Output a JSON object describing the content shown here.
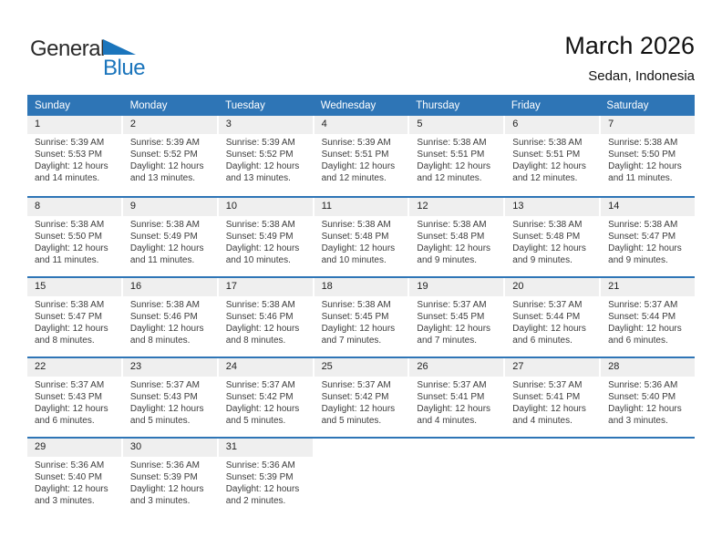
{
  "logo": {
    "general": "General",
    "blue": "Blue"
  },
  "header": {
    "title": "March 2026",
    "location": "Sedan, Indonesia"
  },
  "colors": {
    "header_bar_blue": "#2e75b6",
    "week_separator_blue": "#2e75b6",
    "date_band_gray": "#efefef",
    "logo_blue": "#1b75bc",
    "detail_text": "#3c3c3c"
  },
  "calendar": {
    "day_headers": [
      "Sunday",
      "Monday",
      "Tuesday",
      "Wednesday",
      "Thursday",
      "Friday",
      "Saturday"
    ],
    "weeks": [
      [
        {
          "day": "1",
          "sunrise": "Sunrise: 5:39 AM",
          "sunset": "Sunset: 5:53 PM",
          "daylight": "Daylight: 12 hours and 14 minutes."
        },
        {
          "day": "2",
          "sunrise": "Sunrise: 5:39 AM",
          "sunset": "Sunset: 5:52 PM",
          "daylight": "Daylight: 12 hours and 13 minutes."
        },
        {
          "day": "3",
          "sunrise": "Sunrise: 5:39 AM",
          "sunset": "Sunset: 5:52 PM",
          "daylight": "Daylight: 12 hours and 13 minutes."
        },
        {
          "day": "4",
          "sunrise": "Sunrise: 5:39 AM",
          "sunset": "Sunset: 5:51 PM",
          "daylight": "Daylight: 12 hours and 12 minutes."
        },
        {
          "day": "5",
          "sunrise": "Sunrise: 5:38 AM",
          "sunset": "Sunset: 5:51 PM",
          "daylight": "Daylight: 12 hours and 12 minutes."
        },
        {
          "day": "6",
          "sunrise": "Sunrise: 5:38 AM",
          "sunset": "Sunset: 5:51 PM",
          "daylight": "Daylight: 12 hours and 12 minutes."
        },
        {
          "day": "7",
          "sunrise": "Sunrise: 5:38 AM",
          "sunset": "Sunset: 5:50 PM",
          "daylight": "Daylight: 12 hours and 11 minutes."
        }
      ],
      [
        {
          "day": "8",
          "sunrise": "Sunrise: 5:38 AM",
          "sunset": "Sunset: 5:50 PM",
          "daylight": "Daylight: 12 hours and 11 minutes."
        },
        {
          "day": "9",
          "sunrise": "Sunrise: 5:38 AM",
          "sunset": "Sunset: 5:49 PM",
          "daylight": "Daylight: 12 hours and 11 minutes."
        },
        {
          "day": "10",
          "sunrise": "Sunrise: 5:38 AM",
          "sunset": "Sunset: 5:49 PM",
          "daylight": "Daylight: 12 hours and 10 minutes."
        },
        {
          "day": "11",
          "sunrise": "Sunrise: 5:38 AM",
          "sunset": "Sunset: 5:48 PM",
          "daylight": "Daylight: 12 hours and 10 minutes."
        },
        {
          "day": "12",
          "sunrise": "Sunrise: 5:38 AM",
          "sunset": "Sunset: 5:48 PM",
          "daylight": "Daylight: 12 hours and 9 minutes."
        },
        {
          "day": "13",
          "sunrise": "Sunrise: 5:38 AM",
          "sunset": "Sunset: 5:48 PM",
          "daylight": "Daylight: 12 hours and 9 minutes."
        },
        {
          "day": "14",
          "sunrise": "Sunrise: 5:38 AM",
          "sunset": "Sunset: 5:47 PM",
          "daylight": "Daylight: 12 hours and 9 minutes."
        }
      ],
      [
        {
          "day": "15",
          "sunrise": "Sunrise: 5:38 AM",
          "sunset": "Sunset: 5:47 PM",
          "daylight": "Daylight: 12 hours and 8 minutes."
        },
        {
          "day": "16",
          "sunrise": "Sunrise: 5:38 AM",
          "sunset": "Sunset: 5:46 PM",
          "daylight": "Daylight: 12 hours and 8 minutes."
        },
        {
          "day": "17",
          "sunrise": "Sunrise: 5:38 AM",
          "sunset": "Sunset: 5:46 PM",
          "daylight": "Daylight: 12 hours and 8 minutes."
        },
        {
          "day": "18",
          "sunrise": "Sunrise: 5:38 AM",
          "sunset": "Sunset: 5:45 PM",
          "daylight": "Daylight: 12 hours and 7 minutes."
        },
        {
          "day": "19",
          "sunrise": "Sunrise: 5:37 AM",
          "sunset": "Sunset: 5:45 PM",
          "daylight": "Daylight: 12 hours and 7 minutes."
        },
        {
          "day": "20",
          "sunrise": "Sunrise: 5:37 AM",
          "sunset": "Sunset: 5:44 PM",
          "daylight": "Daylight: 12 hours and 6 minutes."
        },
        {
          "day": "21",
          "sunrise": "Sunrise: 5:37 AM",
          "sunset": "Sunset: 5:44 PM",
          "daylight": "Daylight: 12 hours and 6 minutes."
        }
      ],
      [
        {
          "day": "22",
          "sunrise": "Sunrise: 5:37 AM",
          "sunset": "Sunset: 5:43 PM",
          "daylight": "Daylight: 12 hours and 6 minutes."
        },
        {
          "day": "23",
          "sunrise": "Sunrise: 5:37 AM",
          "sunset": "Sunset: 5:43 PM",
          "daylight": "Daylight: 12 hours and 5 minutes."
        },
        {
          "day": "24",
          "sunrise": "Sunrise: 5:37 AM",
          "sunset": "Sunset: 5:42 PM",
          "daylight": "Daylight: 12 hours and 5 minutes."
        },
        {
          "day": "25",
          "sunrise": "Sunrise: 5:37 AM",
          "sunset": "Sunset: 5:42 PM",
          "daylight": "Daylight: 12 hours and 5 minutes."
        },
        {
          "day": "26",
          "sunrise": "Sunrise: 5:37 AM",
          "sunset": "Sunset: 5:41 PM",
          "daylight": "Daylight: 12 hours and 4 minutes."
        },
        {
          "day": "27",
          "sunrise": "Sunrise: 5:37 AM",
          "sunset": "Sunset: 5:41 PM",
          "daylight": "Daylight: 12 hours and 4 minutes."
        },
        {
          "day": "28",
          "sunrise": "Sunrise: 5:36 AM",
          "sunset": "Sunset: 5:40 PM",
          "daylight": "Daylight: 12 hours and 3 minutes."
        }
      ],
      [
        {
          "day": "29",
          "sunrise": "Sunrise: 5:36 AM",
          "sunset": "Sunset: 5:40 PM",
          "daylight": "Daylight: 12 hours and 3 minutes."
        },
        {
          "day": "30",
          "sunrise": "Sunrise: 5:36 AM",
          "sunset": "Sunset: 5:39 PM",
          "daylight": "Daylight: 12 hours and 3 minutes."
        },
        {
          "day": "31",
          "sunrise": "Sunrise: 5:36 AM",
          "sunset": "Sunset: 5:39 PM",
          "daylight": "Daylight: 12 hours and 2 minutes."
        },
        null,
        null,
        null,
        null
      ]
    ]
  }
}
